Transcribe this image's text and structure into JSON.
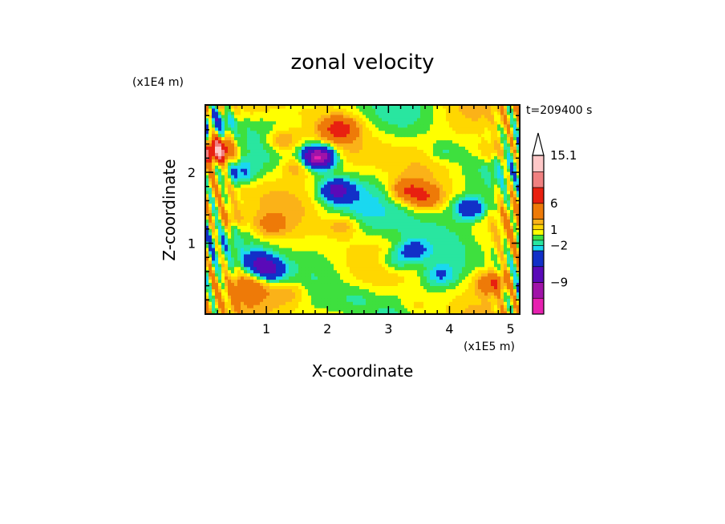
{
  "chart_data": {
    "type": "heatmap",
    "title": "zonal velocity",
    "xlabel": "X-coordinate",
    "ylabel": "Z-coordinate",
    "x_scale_note": "(x1E5 m)",
    "y_scale_note": "(x1E4 m)",
    "time_label": "t=209400 s",
    "xlim": [
      0,
      5.15
    ],
    "ylim": [
      0,
      2.95
    ],
    "x_ticks": [
      "1",
      "2",
      "3",
      "4",
      "5"
    ],
    "y_ticks": [
      "1",
      "2"
    ],
    "colorbar": {
      "labels": [
        "15.1",
        "6",
        "1",
        "−2",
        "−9"
      ],
      "levels_top_to_bottom": [
        15.1,
        12,
        9,
        6,
        3,
        2,
        1,
        0,
        -1,
        -2,
        -3,
        -6,
        -9,
        -12,
        -15
      ],
      "colors_top_to_bottom": [
        "#ffc8c8",
        "#f08080",
        "#e82010",
        "#ee7a08",
        "#fbb218",
        "#ffd700",
        "#ffff00",
        "#3ee03e",
        "#29e6a0",
        "#1ad8f0",
        "#1230c8",
        "#5a0ab8",
        "#a013a8",
        "#e621b0"
      ]
    },
    "features": [
      {
        "x": 0.2,
        "z": 2.32,
        "sign": 1,
        "amp": 11
      },
      {
        "x": 0.2,
        "z": 2.72,
        "sign": -1,
        "amp": 4
      },
      {
        "x": 0.55,
        "z": 2.0,
        "sign": -1,
        "amp": 4
      },
      {
        "x": 0.4,
        "z": 1.35,
        "sign": 1,
        "amp": 3
      },
      {
        "x": 0.85,
        "z": 0.75,
        "sign": -1,
        "amp": 5
      },
      {
        "x": 1.05,
        "z": 0.62,
        "sign": -1,
        "amp": 7
      },
      {
        "x": 0.75,
        "z": 0.4,
        "sign": 1,
        "amp": 3
      },
      {
        "x": 1.05,
        "z": 1.25,
        "sign": 1,
        "amp": 3
      },
      {
        "x": 1.25,
        "z": 2.45,
        "sign": 1,
        "amp": 4
      },
      {
        "x": 1.5,
        "z": 2.1,
        "sign": 1,
        "amp": 3
      },
      {
        "x": 1.85,
        "z": 2.22,
        "sign": -1,
        "amp": 14
      },
      {
        "x": 2.15,
        "z": 1.75,
        "sign": -1,
        "amp": 7
      },
      {
        "x": 2.2,
        "z": 2.62,
        "sign": 1,
        "amp": 6
      },
      {
        "x": 2.25,
        "z": 1.25,
        "sign": 1,
        "amp": 3
      },
      {
        "x": 3.3,
        "z": 1.75,
        "sign": 1,
        "amp": 5
      },
      {
        "x": 3.6,
        "z": 1.65,
        "sign": 1,
        "amp": 5
      },
      {
        "x": 3.1,
        "z": 0.75,
        "sign": -1,
        "amp": 3
      },
      {
        "x": 3.4,
        "z": 0.9,
        "sign": -1,
        "amp": 4
      },
      {
        "x": 3.85,
        "z": 0.55,
        "sign": -1,
        "amp": 3
      },
      {
        "x": 3.9,
        "z": 2.3,
        "sign": -1,
        "amp": 2
      },
      {
        "x": 4.35,
        "z": 1.5,
        "sign": -1,
        "amp": 6
      },
      {
        "x": 4.7,
        "z": 0.45,
        "sign": 1,
        "amp": 6
      },
      {
        "x": 3.45,
        "z": 0.1,
        "sign": 1,
        "amp": 2
      },
      {
        "x": 1.4,
        "z": 0.3,
        "sign": 1,
        "amp": 2
      },
      {
        "x": 2.5,
        "z": 0.25,
        "sign": -1,
        "amp": 1
      },
      {
        "x": 4.7,
        "z": 2.3,
        "sign": 1,
        "amp": 3
      }
    ]
  }
}
